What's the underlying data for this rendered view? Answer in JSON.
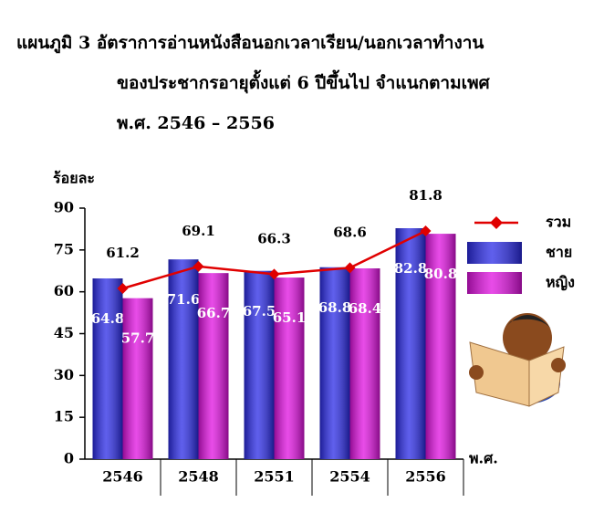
{
  "chart_data": {
    "type": "bar_line",
    "title_lines": [
      "แผนภูมิ 3  อัตราการอ่านหนังสือนอกเวลาเรียน/นอกเวลาทำงาน",
      "ของประชากรอายุตั้งแต่ 6 ปีขึ้นไป  จำแนกตามเพศ",
      "พ.ศ. 2546 – 2556"
    ],
    "y_label": "ร้อยละ",
    "x_label": "พ.ศ.",
    "categories": [
      "2546",
      "2548",
      "2551",
      "2554",
      "2556"
    ],
    "series": [
      {
        "name": "รวม",
        "kind": "line",
        "color": "#e00000",
        "values": [
          61.2,
          69.1,
          66.3,
          68.6,
          81.8
        ]
      },
      {
        "name": "ชาย",
        "kind": "bar",
        "color": "#2a2ae6",
        "values": [
          64.8,
          71.6,
          67.5,
          68.8,
          82.8
        ]
      },
      {
        "name": "หญิง",
        "kind": "bar",
        "color": "#e010e0",
        "values": [
          57.7,
          66.7,
          65.1,
          68.4,
          80.8
        ]
      }
    ],
    "ylim": [
      0,
      90
    ],
    "yticks": [
      0,
      15,
      30,
      45,
      60,
      75,
      90
    ]
  }
}
